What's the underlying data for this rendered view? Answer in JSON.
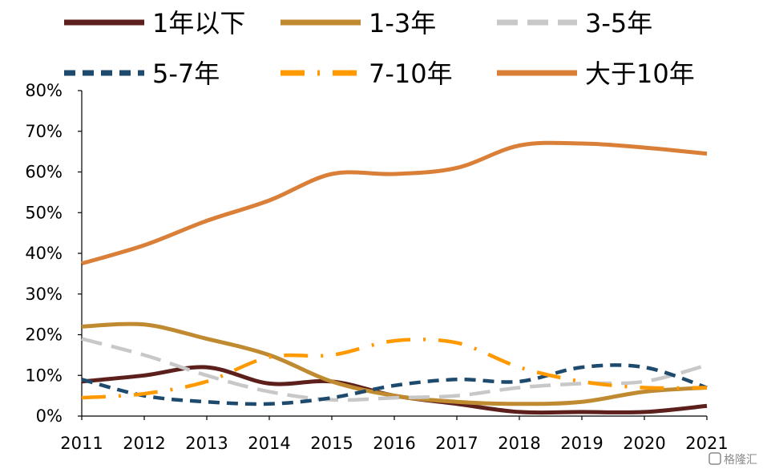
{
  "chart_data": {
    "type": "line",
    "x": [
      2011,
      2012,
      2013,
      2014,
      2015,
      2016,
      2017,
      2018,
      2019,
      2020,
      2021
    ],
    "x_tick_labels": [
      "2011",
      "2012",
      "2013",
      "2014",
      "2015",
      "2016",
      "2017",
      "2018",
      "2019",
      "2020",
      "2021"
    ],
    "ylim": [
      0,
      80
    ],
    "y_ticks": [
      0,
      10,
      20,
      30,
      40,
      50,
      60,
      70,
      80
    ],
    "y_tick_labels": [
      "0%",
      "10%",
      "20%",
      "30%",
      "40%",
      "50%",
      "60%",
      "70%",
      "80%"
    ],
    "grid": false,
    "legend_placement": "top",
    "series": [
      {
        "name": "1年以下",
        "color": "#5c1f1c",
        "style": "solid",
        "values": [
          8.5,
          10,
          12,
          8,
          8.5,
          5,
          3,
          1,
          1,
          1,
          2.5
        ]
      },
      {
        "name": "1-3年",
        "color": "#c08a30",
        "style": "solid",
        "values": [
          22,
          22.5,
          19,
          15,
          8.5,
          5,
          3.5,
          3,
          3.5,
          6,
          7
        ]
      },
      {
        "name": "3-5年",
        "color": "#c8c8c8",
        "style": "dash",
        "values": [
          19,
          15,
          10,
          6,
          4,
          4.5,
          5,
          7,
          8,
          8.5,
          12.5
        ]
      },
      {
        "name": "5-7年",
        "color": "#1e4a6e",
        "style": "shortdash",
        "values": [
          9,
          5,
          3.5,
          3,
          4.5,
          7.5,
          9,
          8.5,
          12,
          12,
          7
        ]
      },
      {
        "name": "7-10年",
        "color": "#ff9900",
        "style": "dashdot",
        "values": [
          4.5,
          5.5,
          8.5,
          14.5,
          15,
          18.5,
          18,
          12,
          8.5,
          7,
          7
        ]
      },
      {
        "name": "大于10年",
        "color": "#d97f38",
        "style": "solid",
        "values": [
          37.5,
          42,
          48,
          53,
          59.5,
          59.5,
          61,
          66.5,
          67,
          66,
          64.5
        ]
      }
    ]
  },
  "watermark": {
    "text": "格隆汇"
  }
}
